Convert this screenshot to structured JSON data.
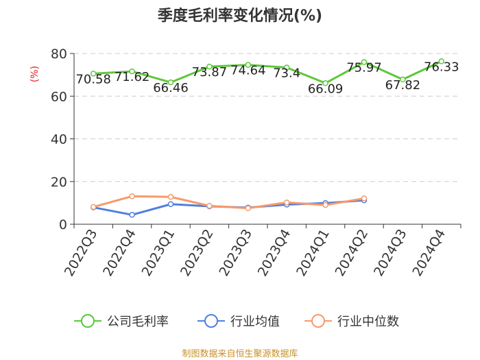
{
  "chart_data": {
    "type": "line",
    "title": "季度毛利率变化情况(%)",
    "ylabel": "(%)",
    "ylim": [
      0,
      80
    ],
    "yticks": [
      0,
      20,
      40,
      60,
      80
    ],
    "grid": true,
    "categories": [
      "2022Q3",
      "2022Q4",
      "2023Q1",
      "2023Q2",
      "2023Q3",
      "2023Q4",
      "2024Q1",
      "2024Q2",
      "2024Q3",
      "2024Q4"
    ],
    "series": [
      {
        "name": "公司毛利率",
        "color": "#5cc83a",
        "values": [
          70.58,
          71.62,
          66.46,
          73.87,
          74.64,
          73.4,
          66.09,
          75.97,
          67.82,
          76.33
        ],
        "labels": [
          "70.58",
          "71.62",
          "66.46",
          "73.87",
          "74.64",
          "73.4",
          "66.09",
          "75.97",
          "67.82",
          "76.33"
        ]
      },
      {
        "name": "行业均值",
        "color": "#4f7fe0",
        "values": [
          7.9,
          4.4,
          9.4,
          8.4,
          7.8,
          9.2,
          9.9,
          11.2,
          null,
          null
        ]
      },
      {
        "name": "行业中位数",
        "color": "#f59a6a",
        "values": [
          8.1,
          13.1,
          12.8,
          8.6,
          7.5,
          10.2,
          9.0,
          12.1,
          null,
          null
        ]
      }
    ],
    "legend_position": "bottom"
  },
  "source": "制图数据来自恒生聚源数据库"
}
